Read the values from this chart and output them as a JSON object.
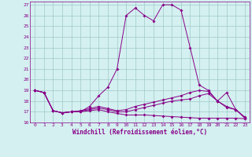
{
  "xlabel": "Windchill (Refroidissement éolien,°C)",
  "background_color": "#d4f0f0",
  "grid_color": "#a0c8c8",
  "line_color": "#880088",
  "xlim": [
    -0.5,
    23.5
  ],
  "ylim": [
    16,
    27.3
  ],
  "yticks": [
    16,
    17,
    18,
    19,
    20,
    21,
    22,
    23,
    24,
    25,
    26,
    27
  ],
  "xticks": [
    0,
    1,
    2,
    3,
    4,
    5,
    6,
    7,
    8,
    9,
    10,
    11,
    12,
    13,
    14,
    15,
    16,
    17,
    18,
    19,
    20,
    21,
    22,
    23
  ],
  "series": [
    [
      19.0,
      18.8,
      17.1,
      16.9,
      17.0,
      17.0,
      17.5,
      18.5,
      19.3,
      21.0,
      26.0,
      26.7,
      26.0,
      25.5,
      27.0,
      27.0,
      26.5,
      23.0,
      19.5,
      19.0,
      18.0,
      18.8,
      17.2,
      16.4
    ],
    [
      19.0,
      18.8,
      17.1,
      16.9,
      17.0,
      17.1,
      17.3,
      17.5,
      17.3,
      17.1,
      17.2,
      17.5,
      17.7,
      17.9,
      18.1,
      18.3,
      18.5,
      18.8,
      19.0,
      18.9,
      18.0,
      17.5,
      17.2,
      16.5
    ],
    [
      19.0,
      18.8,
      17.1,
      16.9,
      17.0,
      17.0,
      17.1,
      17.2,
      17.0,
      16.85,
      16.7,
      16.7,
      16.7,
      16.65,
      16.6,
      16.55,
      16.5,
      16.45,
      16.4,
      16.4,
      16.4,
      16.4,
      16.4,
      16.35
    ],
    [
      19.0,
      18.8,
      17.1,
      16.9,
      17.0,
      17.05,
      17.2,
      17.35,
      17.2,
      17.0,
      17.0,
      17.2,
      17.4,
      17.6,
      17.8,
      18.0,
      18.1,
      18.2,
      18.5,
      18.7,
      18.0,
      17.4,
      17.2,
      16.45
    ]
  ]
}
